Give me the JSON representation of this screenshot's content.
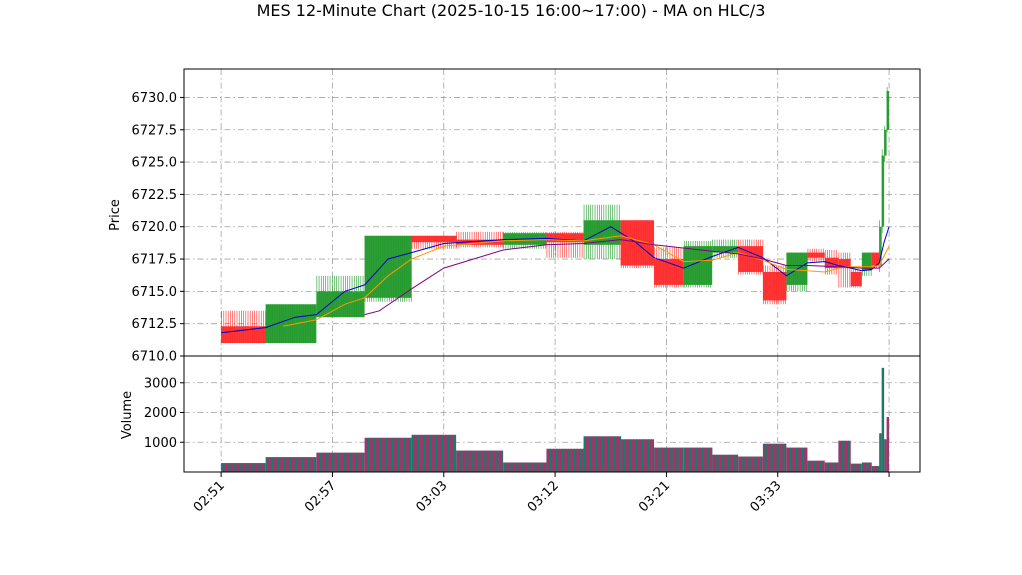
{
  "chart_data": {
    "type": "ohlc",
    "title": "MES 12-Minute Chart (2025-10-15 16:00~17:00) - MA on HLC/3",
    "price_panel": {
      "ylabel": "Price",
      "ylim": [
        6710.0,
        6732.2
      ],
      "yticks": [
        "6710.0",
        "6712.5",
        "6715.0",
        "6717.5",
        "6720.0",
        "6722.5",
        "6725.0",
        "6727.5",
        "6730.0"
      ],
      "grid": true
    },
    "volume_panel": {
      "ylabel": "Volume",
      "ylim": [
        0,
        3900
      ],
      "yticks": [
        "1000",
        "2000",
        "3000"
      ]
    },
    "x_axis": {
      "tick_labels": [
        "02:51",
        "02:57",
        "03:03",
        "03:12",
        "03:21",
        "03:33"
      ],
      "tick_positions": [
        0,
        9,
        18,
        27,
        36,
        45
      ],
      "x_range": [
        -3,
        56.5
      ],
      "last_tick_position": 54
    },
    "candles": [
      {
        "x_start": 0,
        "x_end": 3.6,
        "open": 6712.3,
        "high": 6713.5,
        "low": 6711.0,
        "close": 6711.0,
        "volume": 300
      },
      {
        "x_start": 3.6,
        "x_end": 7.7,
        "open": 6711.0,
        "high": 6714.0,
        "low": 6711.0,
        "close": 6714.0,
        "volume": 500
      },
      {
        "x_start": 7.7,
        "x_end": 11.6,
        "open": 6713.0,
        "high": 6716.2,
        "low": 6713.0,
        "close": 6715.0,
        "volume": 650
      },
      {
        "x_start": 11.6,
        "x_end": 15.4,
        "open": 6714.5,
        "high": 6719.3,
        "low": 6714.2,
        "close": 6719.3,
        "volume": 1150
      },
      {
        "x_start": 15.4,
        "x_end": 19.0,
        "open": 6719.3,
        "high": 6719.3,
        "low": 6718.3,
        "close": 6718.8,
        "volume": 1250
      },
      {
        "x_start": 19.0,
        "x_end": 22.8,
        "open": 6719.0,
        "high": 6719.6,
        "low": 6718.4,
        "close": 6718.6,
        "volume": 720
      },
      {
        "x_start": 22.8,
        "x_end": 26.3,
        "open": 6718.6,
        "high": 6719.6,
        "low": 6718.3,
        "close": 6719.5,
        "volume": 320
      },
      {
        "x_start": 26.3,
        "x_end": 29.3,
        "open": 6719.5,
        "high": 6719.6,
        "low": 6717.6,
        "close": 6718.8,
        "volume": 780
      },
      {
        "x_start": 29.3,
        "x_end": 32.3,
        "open": 6718.6,
        "high": 6721.7,
        "low": 6717.5,
        "close": 6720.5,
        "volume": 1200
      },
      {
        "x_start": 32.3,
        "x_end": 35.0,
        "open": 6720.5,
        "high": 6720.5,
        "low": 6716.8,
        "close": 6717.0,
        "volume": 1100
      },
      {
        "x_start": 35.0,
        "x_end": 37.4,
        "open": 6717.5,
        "high": 6718.4,
        "low": 6715.3,
        "close": 6715.5,
        "volume": 820
      },
      {
        "x_start": 37.4,
        "x_end": 39.7,
        "open": 6715.5,
        "high": 6718.9,
        "low": 6715.3,
        "close": 6718.5,
        "volume": 820
      },
      {
        "x_start": 39.7,
        "x_end": 41.8,
        "open": 6718.0,
        "high": 6719.0,
        "low": 6717.6,
        "close": 6718.5,
        "volume": 580
      },
      {
        "x_start": 41.8,
        "x_end": 43.8,
        "open": 6718.5,
        "high": 6719.0,
        "low": 6716.3,
        "close": 6716.5,
        "volume": 520
      },
      {
        "x_start": 43.8,
        "x_end": 45.7,
        "open": 6716.5,
        "high": 6717.0,
        "low": 6714.0,
        "close": 6714.3,
        "volume": 950
      },
      {
        "x_start": 45.7,
        "x_end": 47.4,
        "open": 6715.5,
        "high": 6718.0,
        "low": 6715.0,
        "close": 6718.0,
        "volume": 820
      },
      {
        "x_start": 47.4,
        "x_end": 48.8,
        "open": 6718.0,
        "high": 6718.3,
        "low": 6717.3,
        "close": 6717.6,
        "volume": 380
      },
      {
        "x_start": 48.8,
        "x_end": 49.9,
        "open": 6717.6,
        "high": 6718.2,
        "low": 6716.3,
        "close": 6716.8,
        "volume": 320
      },
      {
        "x_start": 49.9,
        "x_end": 50.9,
        "open": 6717.5,
        "high": 6718.0,
        "low": 6715.3,
        "close": 6716.8,
        "volume": 1050
      },
      {
        "x_start": 50.9,
        "x_end": 51.8,
        "open": 6716.5,
        "high": 6716.7,
        "low": 6715.3,
        "close": 6715.4,
        "volume": 280
      },
      {
        "x_start": 51.8,
        "x_end": 52.6,
        "open": 6716.6,
        "high": 6718.0,
        "low": 6716.2,
        "close": 6718.0,
        "volume": 320
      },
      {
        "x_start": 52.6,
        "x_end": 53.2,
        "open": 6718.0,
        "high": 6718.0,
        "low": 6716.8,
        "close": 6717.0,
        "volume": 200
      },
      {
        "x_start": 53.2,
        "x_end": 53.4,
        "open": 6717.0,
        "high": 6720.5,
        "low": 6716.5,
        "close": 6720.0,
        "volume": 1300
      },
      {
        "x_start": 53.4,
        "x_end": 53.6,
        "open": 6720.0,
        "high": 6726.0,
        "low": 6719.5,
        "close": 6725.5,
        "volume": 3500
      },
      {
        "x_start": 53.6,
        "x_end": 53.8,
        "open": 6725.5,
        "high": 6727.8,
        "low": 6725.0,
        "close": 6727.5,
        "volume": 1100
      },
      {
        "x_start": 53.8,
        "x_end": 54.0,
        "open": 6727.5,
        "high": 6730.8,
        "low": 6727.3,
        "close": 6730.5,
        "volume": 1850
      }
    ],
    "ma_lines": [
      {
        "color": "#0000cc",
        "points": [
          [
            0,
            6711.8
          ],
          [
            3.6,
            6712.2
          ],
          [
            6,
            6713.0
          ],
          [
            7.7,
            6713.2
          ],
          [
            10,
            6715.0
          ],
          [
            11.6,
            6715.5
          ],
          [
            13.5,
            6717.5
          ],
          [
            15.4,
            6718.0
          ],
          [
            18,
            6718.7
          ],
          [
            22.8,
            6719.0
          ],
          [
            26.3,
            6719.1
          ],
          [
            29.3,
            6718.9
          ],
          [
            31.5,
            6720.0
          ],
          [
            33.5,
            6718.8
          ],
          [
            35.0,
            6717.6
          ],
          [
            37.4,
            6716.8
          ],
          [
            39.7,
            6717.7
          ],
          [
            41.8,
            6718.4
          ],
          [
            43.8,
            6717.6
          ],
          [
            45.7,
            6716.2
          ],
          [
            47.4,
            6717.2
          ],
          [
            48.8,
            6717.3
          ],
          [
            49.9,
            6717.0
          ],
          [
            50.9,
            6716.8
          ],
          [
            51.8,
            6716.6
          ],
          [
            52.6,
            6716.7
          ],
          [
            53.2,
            6717.2
          ],
          [
            53.6,
            6718.8
          ],
          [
            54.0,
            6720.0
          ]
        ]
      },
      {
        "color": "#ff9900",
        "points": [
          [
            5,
            6712.3
          ],
          [
            7.7,
            6712.8
          ],
          [
            10,
            6714.0
          ],
          [
            11.6,
            6714.5
          ],
          [
            13.5,
            6716.2
          ],
          [
            15.4,
            6717.5
          ],
          [
            18,
            6718.5
          ],
          [
            22.8,
            6718.9
          ],
          [
            26.3,
            6719.0
          ],
          [
            29.3,
            6718.9
          ],
          [
            32.3,
            6719.3
          ],
          [
            35.0,
            6718.6
          ],
          [
            37.4,
            6717.3
          ],
          [
            39.7,
            6717.4
          ],
          [
            41.8,
            6718.0
          ],
          [
            43.8,
            6717.4
          ],
          [
            45.7,
            6716.7
          ],
          [
            47.4,
            6716.6
          ],
          [
            48.8,
            6716.5
          ],
          [
            49.9,
            6716.8
          ],
          [
            50.9,
            6716.9
          ],
          [
            51.8,
            6716.9
          ],
          [
            52.6,
            6716.9
          ],
          [
            53.2,
            6717.0
          ],
          [
            54.0,
            6718.5
          ]
        ]
      },
      {
        "color": "#800080",
        "points": [
          [
            11.6,
            6713.2
          ],
          [
            12.8,
            6713.5
          ],
          [
            15.4,
            6715.2
          ],
          [
            18,
            6716.8
          ],
          [
            22.8,
            6718.2
          ],
          [
            26.3,
            6718.6
          ],
          [
            29.3,
            6718.7
          ],
          [
            32.3,
            6719.0
          ],
          [
            35.0,
            6718.6
          ],
          [
            39.7,
            6718.1
          ],
          [
            41.8,
            6717.9
          ],
          [
            43.8,
            6717.5
          ],
          [
            45.7,
            6717.0
          ],
          [
            47.4,
            6717.0
          ],
          [
            49.9,
            6716.9
          ],
          [
            51.8,
            6716.8
          ],
          [
            53.2,
            6716.8
          ],
          [
            54.0,
            6717.5
          ]
        ]
      }
    ],
    "colors": {
      "up": "#22992b",
      "down": "#ff2a2a",
      "volume_up": "#11806a",
      "volume_down": "#a8306a",
      "grid": "#a0a0a0"
    }
  }
}
